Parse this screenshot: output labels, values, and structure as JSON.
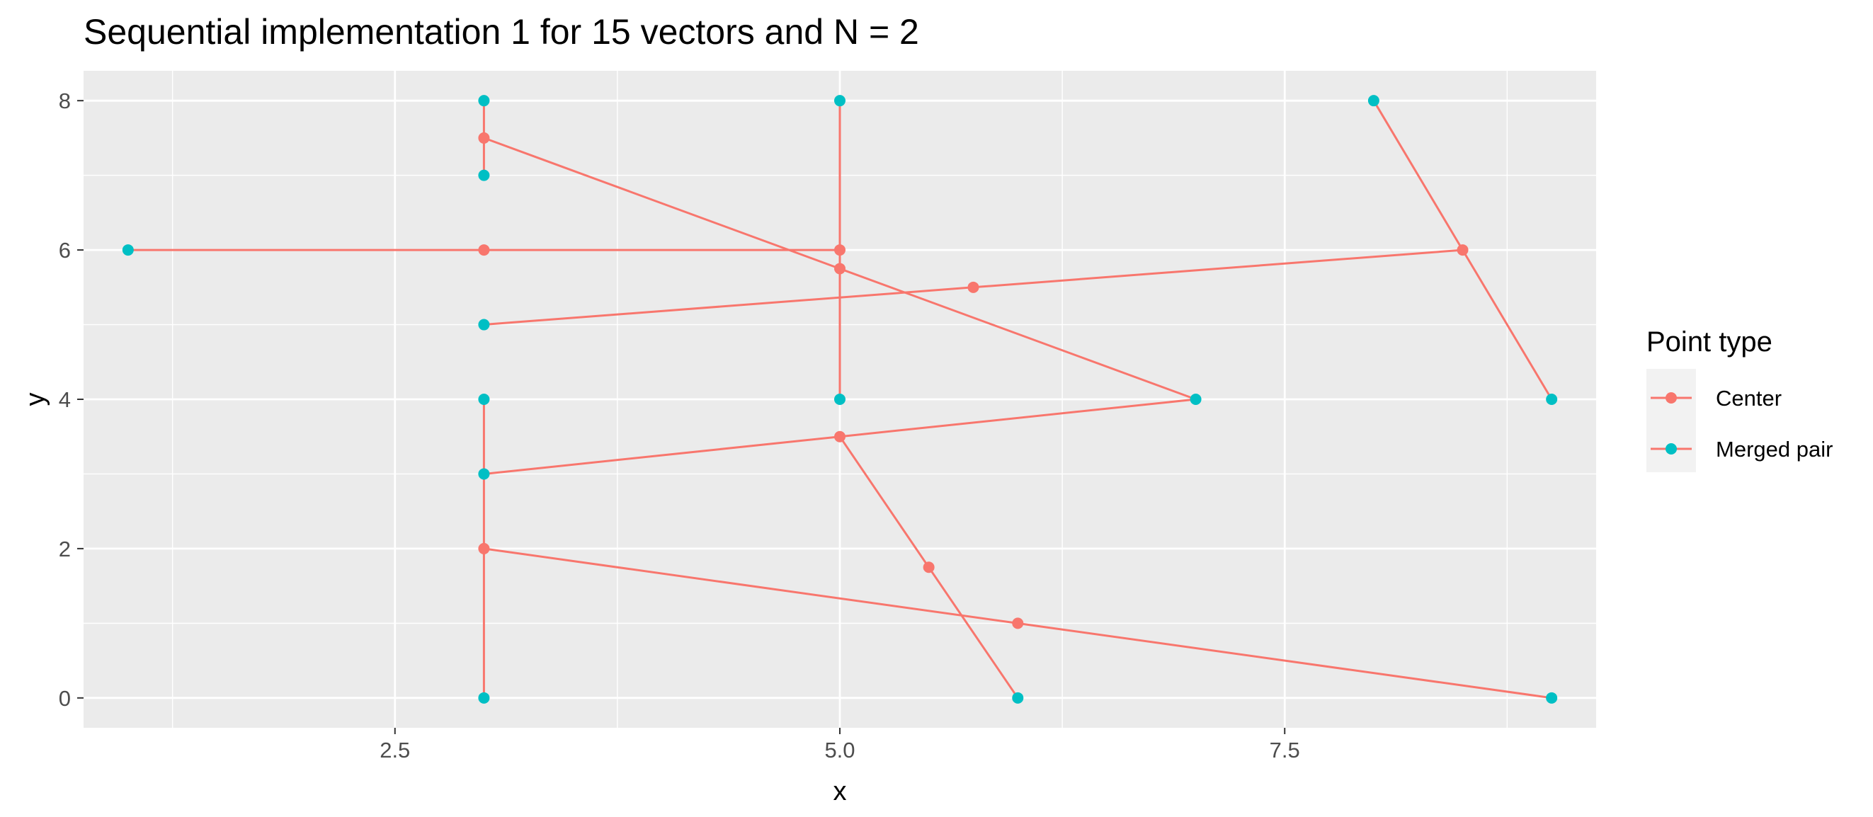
{
  "chart_data": {
    "type": "line",
    "title": "Sequential implementation 1 for 15 vectors and N = 2",
    "xlabel": "x",
    "ylabel": "y",
    "xlim": [
      0.75,
      9.25
    ],
    "ylim": [
      -0.4,
      8.4
    ],
    "x_ticks": [
      2.5,
      5.0,
      7.5
    ],
    "x_tick_labels": [
      "2.5",
      "5.0",
      "7.5"
    ],
    "y_ticks": [
      0,
      2,
      4,
      6,
      8
    ],
    "y_tick_labels": [
      "0",
      "2",
      "4",
      "6",
      "8"
    ],
    "grid": true,
    "panel_background": "#EBEBEB",
    "grid_color": "#FFFFFF",
    "legend": {
      "title": "Point type",
      "placement": "right",
      "entries": [
        {
          "label": "Center",
          "color": "#F8766D"
        },
        {
          "label": "Merged pair",
          "color": "#00BFC4"
        }
      ]
    },
    "line_color": "#F8766D",
    "segments": [
      [
        [
          3,
          8
        ],
        [
          3,
          7.5
        ],
        [
          3,
          7
        ]
      ],
      [
        [
          1,
          6
        ],
        [
          3,
          6
        ],
        [
          5,
          6
        ]
      ],
      [
        [
          5,
          8
        ],
        [
          5,
          6
        ],
        [
          5,
          5.75
        ],
        [
          5,
          4
        ]
      ],
      [
        [
          3,
          7.5
        ],
        [
          5,
          5.75
        ],
        [
          7,
          4
        ]
      ],
      [
        [
          3,
          5
        ],
        [
          5.75,
          5.5
        ],
        [
          8.5,
          6
        ]
      ],
      [
        [
          8,
          8
        ],
        [
          8.5,
          6
        ],
        [
          9,
          4
        ]
      ],
      [
        [
          3,
          4
        ],
        [
          3,
          3
        ],
        [
          3,
          2
        ],
        [
          3,
          0
        ]
      ],
      [
        [
          3,
          3
        ],
        [
          5,
          3.5
        ],
        [
          7,
          4
        ]
      ],
      [
        [
          5,
          3.5
        ],
        [
          5.5,
          1.75
        ],
        [
          6,
          0
        ]
      ],
      [
        [
          3,
          2
        ],
        [
          6,
          1
        ],
        [
          9,
          0
        ]
      ]
    ],
    "series": [
      {
        "name": "Center",
        "color": "#F8766D",
        "points": [
          [
            3,
            7.5
          ],
          [
            3,
            6
          ],
          [
            5,
            6
          ],
          [
            5,
            5.75
          ],
          [
            5.75,
            5.5
          ],
          [
            8.5,
            6
          ],
          [
            5,
            3.5
          ],
          [
            3,
            2
          ],
          [
            5.5,
            1.75
          ],
          [
            6,
            1
          ]
        ]
      },
      {
        "name": "Merged pair",
        "color": "#00BFC4",
        "points": [
          [
            3,
            8
          ],
          [
            5,
            8
          ],
          [
            8,
            8
          ],
          [
            3,
            7
          ],
          [
            1,
            6
          ],
          [
            3,
            5
          ],
          [
            3,
            4
          ],
          [
            5,
            4
          ],
          [
            7,
            4
          ],
          [
            9,
            4
          ],
          [
            3,
            3
          ],
          [
            3,
            0
          ],
          [
            6,
            0
          ],
          [
            9,
            0
          ]
        ]
      }
    ]
  }
}
